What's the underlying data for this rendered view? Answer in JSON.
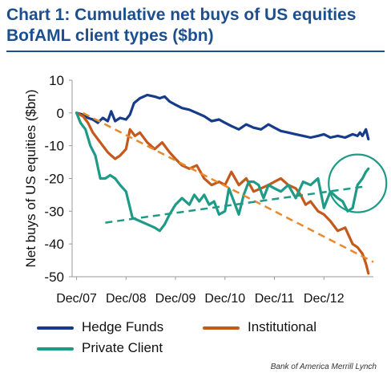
{
  "title_line1": "Chart 1: Cumulative net buys of US equities",
  "title_line2": "BofAML client types ($bn)",
  "source": "Bank of America Merrill Lynch",
  "colors": {
    "title": "#1c4f8f",
    "hedge_funds": "#163b8a",
    "institutional": "#c5581b",
    "private_client": "#1e9b87",
    "trend_institutional": "#e9892e",
    "trend_private_client": "#1e9b87",
    "circle": "#1e9b87"
  },
  "chart_data": {
    "type": "line",
    "title": "Chart 1: Cumulative net buys of US equities BofAML client types ($bn)",
    "ylabel": "Net buys of US equities ($bn)",
    "xlabel": "",
    "ylim": [
      -50,
      10
    ],
    "yticks": [
      10,
      0,
      -10,
      -20,
      -30,
      -40,
      -50
    ],
    "xlim": [
      2007.83,
      2013.92
    ],
    "xticks": [
      {
        "label": "Dec/07",
        "x": 2007.92
      },
      {
        "label": "Dec/08",
        "x": 2008.92
      },
      {
        "label": "Dec/09",
        "x": 2009.92
      },
      {
        "label": "Dec/10",
        "x": 2010.92
      },
      {
        "label": "Dec/11",
        "x": 2011.92
      },
      {
        "label": "Dec/12",
        "x": 2012.92
      }
    ],
    "grid": false,
    "legend_placement": "bottom",
    "series": [
      {
        "name": "Hedge Funds",
        "x": [
          2007.92,
          2008.05,
          2008.15,
          2008.25,
          2008.35,
          2008.45,
          2008.55,
          2008.62,
          2008.7,
          2008.8,
          2008.92,
          2009.0,
          2009.08,
          2009.2,
          2009.35,
          2009.5,
          2009.6,
          2009.7,
          2009.8,
          2009.92,
          2010.05,
          2010.2,
          2010.35,
          2010.5,
          2010.65,
          2010.8,
          2010.92,
          2011.05,
          2011.2,
          2011.35,
          2011.5,
          2011.65,
          2011.8,
          2011.92,
          2012.05,
          2012.2,
          2012.35,
          2012.5,
          2012.65,
          2012.8,
          2012.92,
          2013.05,
          2013.2,
          2013.35,
          2013.5,
          2013.6,
          2013.65,
          2013.7,
          2013.77,
          2013.82
        ],
        "values": [
          0,
          -0.5,
          -1.5,
          -2,
          -3,
          -1.5,
          -2.5,
          0.5,
          -2.5,
          -1.5,
          -2,
          -0.5,
          3,
          4.5,
          5.5,
          5,
          4.5,
          5,
          3.5,
          2.5,
          1.5,
          1,
          0,
          -1,
          -2.5,
          -2,
          -3,
          -4,
          -5,
          -3.5,
          -4.5,
          -5,
          -3.5,
          -4.5,
          -5.5,
          -6,
          -6.5,
          -7,
          -7.5,
          -7,
          -6.5,
          -7.5,
          -7,
          -7.5,
          -6.5,
          -7,
          -6,
          -7,
          -5,
          -8
        ]
      },
      {
        "name": "Institutional",
        "x": [
          2007.92,
          2008.05,
          2008.15,
          2008.25,
          2008.35,
          2008.45,
          2008.55,
          2008.62,
          2008.7,
          2008.8,
          2008.92,
          2009.0,
          2009.1,
          2009.2,
          2009.35,
          2009.5,
          2009.65,
          2009.8,
          2009.92,
          2010.05,
          2010.2,
          2010.35,
          2010.5,
          2010.65,
          2010.8,
          2010.92,
          2011.05,
          2011.2,
          2011.35,
          2011.5,
          2011.65,
          2011.8,
          2011.92,
          2012.05,
          2012.2,
          2012.35,
          2012.45,
          2012.55,
          2012.65,
          2012.8,
          2012.92,
          2013.05,
          2013.2,
          2013.35,
          2013.5,
          2013.6,
          2013.7,
          2013.77,
          2013.82
        ],
        "values": [
          0,
          -1,
          -3,
          -6,
          -8,
          -10,
          -12,
          -13,
          -14,
          -13,
          -11,
          -5,
          -7,
          -6,
          -9,
          -11,
          -9,
          -12,
          -14,
          -16,
          -17,
          -16,
          -20,
          -22,
          -21,
          -22,
          -18,
          -22,
          -20,
          -24,
          -23,
          -22,
          -21,
          -20,
          -22,
          -23,
          -25,
          -28,
          -27,
          -30,
          -31,
          -33,
          -36,
          -35,
          -40,
          -41,
          -43,
          -46,
          -49
        ]
      },
      {
        "name": "Private Client",
        "x": [
          2007.92,
          2008.0,
          2008.1,
          2008.2,
          2008.3,
          2008.4,
          2008.5,
          2008.6,
          2008.7,
          2008.8,
          2008.92,
          2009.05,
          2009.2,
          2009.35,
          2009.5,
          2009.6,
          2009.7,
          2009.8,
          2009.92,
          2010.05,
          2010.2,
          2010.3,
          2010.4,
          2010.5,
          2010.6,
          2010.7,
          2010.8,
          2010.92,
          2011.0,
          2011.1,
          2011.2,
          2011.3,
          2011.4,
          2011.5,
          2011.6,
          2011.7,
          2011.8,
          2011.92,
          2012.05,
          2012.2,
          2012.35,
          2012.5,
          2012.65,
          2012.8,
          2012.92,
          2013.05,
          2013.2,
          2013.3,
          2013.4,
          2013.5,
          2013.6,
          2013.7,
          2013.77,
          2013.82
        ],
        "values": [
          0,
          -3,
          -5,
          -10,
          -13,
          -20,
          -20,
          -19,
          -20,
          -22,
          -24,
          -32,
          -33,
          -34,
          -35,
          -36,
          -34,
          -31,
          -28,
          -26,
          -28,
          -25,
          -27,
          -25,
          -28,
          -27,
          -31,
          -30,
          -23,
          -27,
          -31,
          -25,
          -21,
          -21,
          -22,
          -26,
          -22,
          -23,
          -24,
          -22,
          -26,
          -21,
          -22,
          -20,
          -29,
          -24,
          -26,
          -27,
          -30,
          -29,
          -22,
          -20,
          -18,
          -17
        ]
      }
    ],
    "annotations": [
      {
        "type": "trendline",
        "series": "Institutional",
        "from": [
          2008.05,
          0
        ],
        "to": [
          2013.92,
          -45.5
        ]
      },
      {
        "type": "trendline",
        "series": "Private Client",
        "from": [
          2008.5,
          -33.5
        ],
        "to": [
          2013.72,
          -22.5
        ]
      },
      {
        "type": "circle",
        "center": [
          2013.6,
          -21.5
        ],
        "note": "highlights recent Private Client rise"
      }
    ]
  },
  "legend": [
    {
      "label": "Hedge Funds",
      "color_key": "hedge_funds"
    },
    {
      "label": "Institutional",
      "color_key": "institutional"
    },
    {
      "label": "Private Client",
      "color_key": "private_client"
    }
  ]
}
